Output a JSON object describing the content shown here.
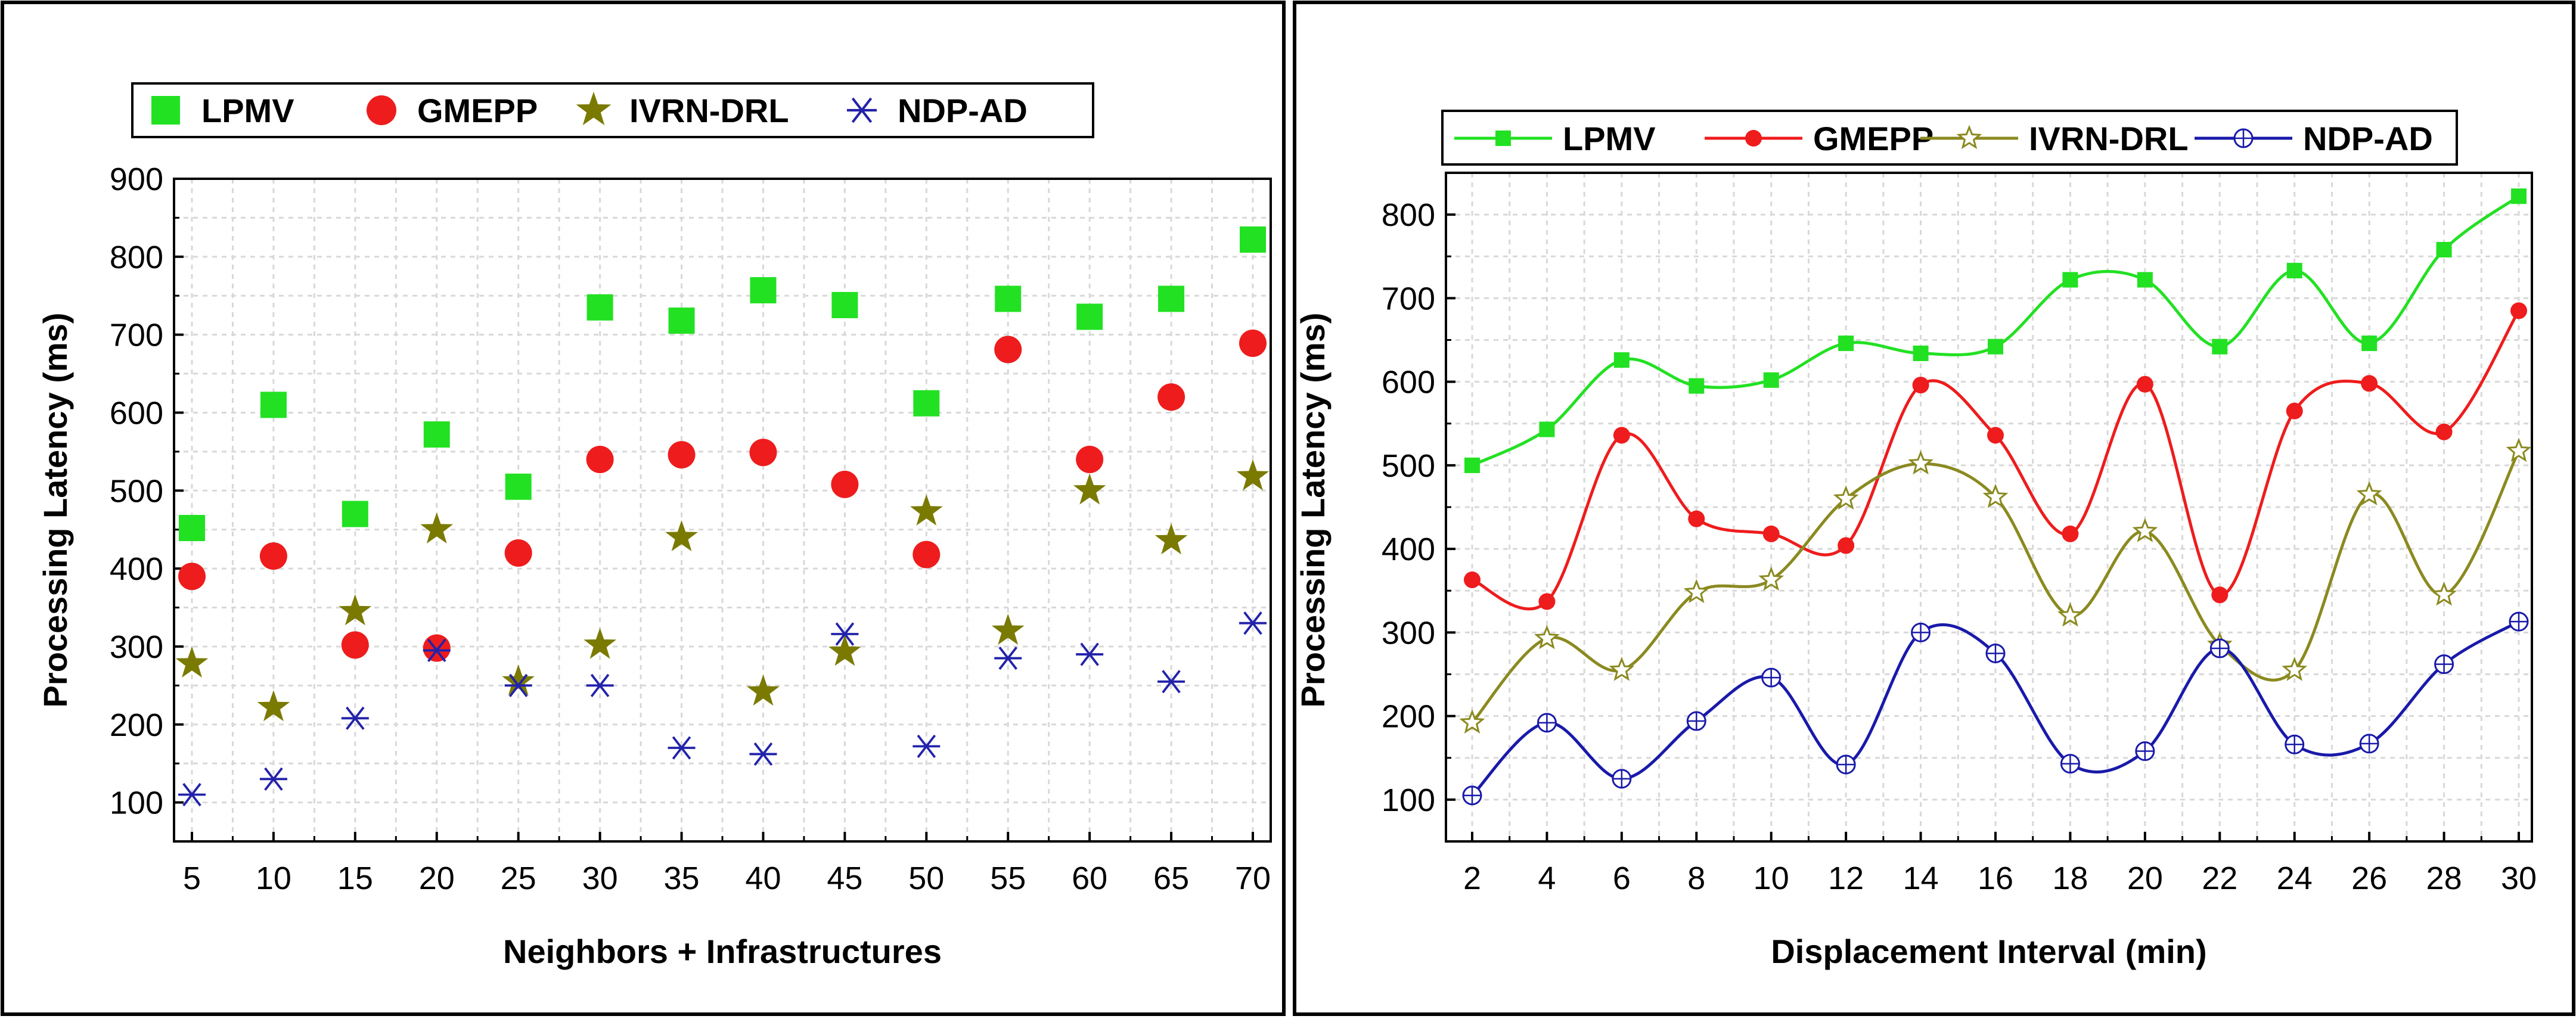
{
  "chart_data": [
    {
      "type": "scatter",
      "xlabel": "Neighbors + Infrastructures",
      "ylabel": "Processing Latency (ms)",
      "categories": [
        5,
        10,
        15,
        20,
        25,
        30,
        35,
        40,
        45,
        50,
        55,
        60,
        65,
        70
      ],
      "ylim": [
        50,
        900
      ],
      "yticks": [
        100,
        200,
        300,
        400,
        500,
        600,
        700,
        800,
        900
      ],
      "grid": true,
      "legend_position": "top",
      "series": [
        {
          "name": "LPMV",
          "color": "#22e022",
          "marker": "square",
          "values": [
            452,
            610,
            470,
            572,
            505,
            735,
            718,
            757,
            738,
            612,
            746,
            723,
            746,
            822
          ]
        },
        {
          "name": "GMEPP",
          "color": "#ee1c1c",
          "marker": "circle",
          "values": [
            390,
            416,
            302,
            298,
            420,
            540,
            546,
            549,
            508,
            418,
            681,
            540,
            620,
            689
          ]
        },
        {
          "name": "IVRN-DRL",
          "color": "#7a7a00",
          "marker": "star",
          "values": [
            278,
            222,
            345,
            450,
            255,
            302,
            440,
            242,
            293,
            473,
            320,
            500,
            436,
            518
          ]
        },
        {
          "name": "NDP-AD",
          "color": "#2222aa",
          "marker": "asterisk",
          "values": [
            110,
            130,
            208,
            295,
            250,
            250,
            170,
            162,
            316,
            172,
            285,
            290,
            255,
            330
          ]
        }
      ]
    },
    {
      "type": "line",
      "xlabel": "Displacement Interval (min)",
      "ylabel": "Processing Latency (ms)",
      "x": [
        2,
        4,
        6,
        8,
        10,
        12,
        14,
        16,
        18,
        20,
        22,
        24,
        26,
        28,
        30
      ],
      "ylim": [
        50,
        850
      ],
      "yticks": [
        100,
        200,
        300,
        400,
        500,
        600,
        700,
        800
      ],
      "grid": true,
      "legend_position": "top",
      "series": [
        {
          "name": "LPMV",
          "color": "#22e022",
          "marker": "square",
          "values": [
            500,
            543,
            626,
            595,
            602,
            646,
            634,
            642,
            722,
            722,
            642,
            733,
            646,
            758,
            822
          ]
        },
        {
          "name": "GMEPP",
          "color": "#ee1c1c",
          "marker": "circle",
          "values": [
            363,
            337,
            536,
            436,
            418,
            404,
            596,
            536,
            418,
            597,
            345,
            565,
            598,
            540,
            685
          ]
        },
        {
          "name": "IVRN-DRL",
          "color": "#8a8a20",
          "marker": "star",
          "values": [
            192,
            293,
            255,
            348,
            363,
            460,
            502,
            462,
            320,
            421,
            285,
            255,
            465,
            345,
            517
          ]
        },
        {
          "name": "NDP-AD",
          "color": "#1a1aaa",
          "marker": "crossed-circle",
          "values": [
            105,
            192,
            125,
            194,
            246,
            142,
            300,
            275,
            143,
            158,
            281,
            166,
            167,
            262,
            313
          ]
        }
      ]
    }
  ]
}
